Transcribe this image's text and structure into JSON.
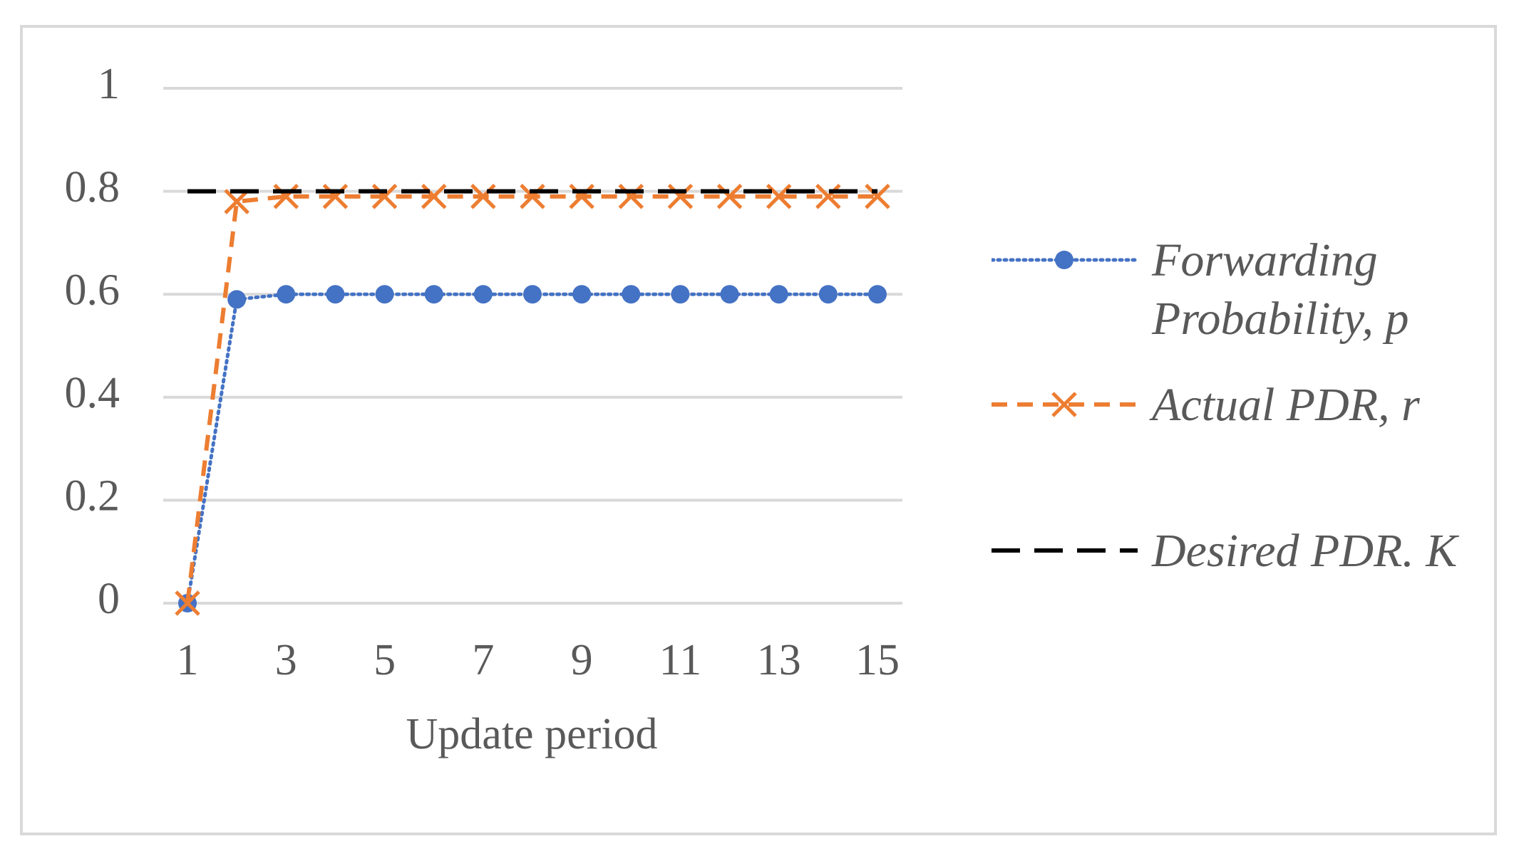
{
  "chart_data": {
    "type": "line",
    "x": [
      1,
      2,
      3,
      4,
      5,
      6,
      7,
      8,
      9,
      10,
      11,
      12,
      13,
      14,
      15
    ],
    "xlim": [
      1,
      15
    ],
    "xticks": [
      1,
      3,
      5,
      7,
      9,
      11,
      13,
      15
    ],
    "ylim": [
      0,
      1
    ],
    "yticks": [
      0,
      0.2,
      0.4,
      0.6,
      0.8,
      1
    ],
    "x_label": "Update period",
    "grid": true,
    "legend": "right",
    "series": [
      {
        "name": "Forwarding Probability, p",
        "color": "#4472c4",
        "line_style": "dotted",
        "marker": "circle",
        "values": [
          0,
          0.59,
          0.6,
          0.6,
          0.6,
          0.6,
          0.6,
          0.6,
          0.6,
          0.6,
          0.6,
          0.6,
          0.6,
          0.6,
          0.6
        ]
      },
      {
        "name": "Actual PDR, r",
        "color": "#ed7d31",
        "line_style": "dashed",
        "marker": "x",
        "values": [
          0,
          0.78,
          0.79,
          0.79,
          0.79,
          0.79,
          0.79,
          0.79,
          0.79,
          0.79,
          0.79,
          0.79,
          0.79,
          0.79,
          0.79
        ]
      },
      {
        "name": "Desired PDR. K",
        "color": "#000000",
        "line_style": "longdash",
        "marker": "none",
        "values": [
          0.8,
          0.8,
          0.8,
          0.8,
          0.8,
          0.8,
          0.8,
          0.8,
          0.8,
          0.8,
          0.8,
          0.8,
          0.8,
          0.8,
          0.8
        ]
      }
    ]
  }
}
